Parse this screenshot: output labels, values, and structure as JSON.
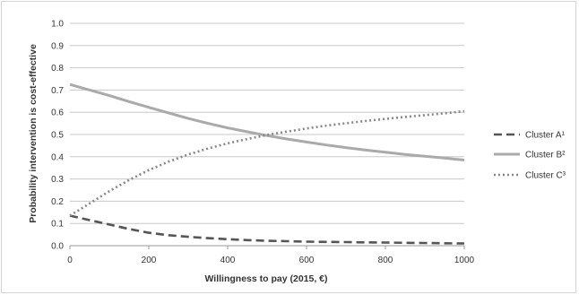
{
  "chart_data": {
    "type": "line",
    "xlabel": "Willingness to pay (2015, €)",
    "ylabel": "Probability intervention is cost-effective",
    "xlim": [
      0,
      1000
    ],
    "ylim": [
      0,
      1
    ],
    "x_ticks": [
      "0",
      "200",
      "400",
      "600",
      "800",
      "1000"
    ],
    "y_ticks": [
      "0.0",
      "0.1",
      "0.2",
      "0.3",
      "0.4",
      "0.5",
      "0.6",
      "0.7",
      "0.8",
      "0.9",
      "1.0"
    ],
    "grid": "horizontal",
    "legend_position": "right",
    "x": [
      0,
      50,
      100,
      150,
      200,
      250,
      300,
      350,
      400,
      450,
      500,
      550,
      600,
      650,
      700,
      750,
      800,
      850,
      900,
      950,
      1000
    ],
    "series": [
      {
        "name": "Cluster A¹",
        "style": "dashed",
        "color": "#555555",
        "values": [
          0.135,
          0.115,
          0.095,
          0.075,
          0.058,
          0.047,
          0.04,
          0.034,
          0.029,
          0.025,
          0.022,
          0.02,
          0.018,
          0.017,
          0.016,
          0.015,
          0.014,
          0.013,
          0.012,
          0.011,
          0.01
        ]
      },
      {
        "name": "Cluster B²",
        "style": "solid",
        "color": "#aaaaaa",
        "values": [
          0.725,
          0.7,
          0.675,
          0.648,
          0.622,
          0.597,
          0.572,
          0.55,
          0.53,
          0.512,
          0.495,
          0.48,
          0.466,
          0.453,
          0.441,
          0.43,
          0.42,
          0.41,
          0.402,
          0.394,
          0.385
        ]
      },
      {
        "name": "Cluster C³",
        "style": "dotted",
        "color": "#888888",
        "values": [
          0.135,
          0.19,
          0.245,
          0.295,
          0.34,
          0.378,
          0.41,
          0.437,
          0.46,
          0.48,
          0.498,
          0.513,
          0.527,
          0.54,
          0.551,
          0.561,
          0.57,
          0.579,
          0.587,
          0.595,
          0.605
        ]
      }
    ]
  }
}
